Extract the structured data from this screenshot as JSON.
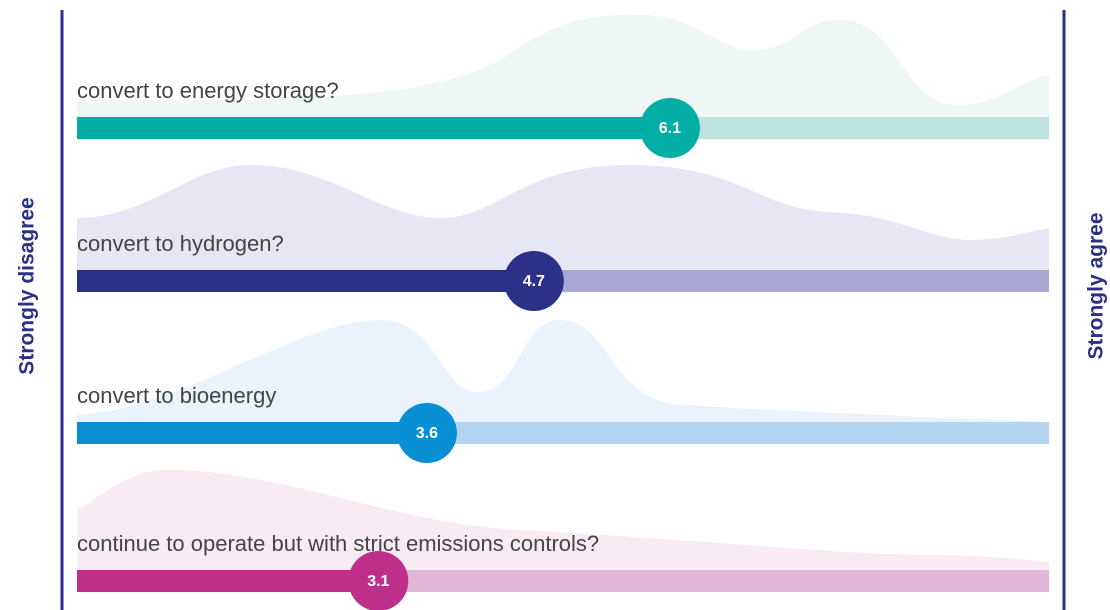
{
  "chart_data": {
    "type": "slider",
    "categories": [
      "convert to energy storage?",
      "convert to hydrogen?",
      "convert to bioenergy",
      "continue to operate but with strict emissions controls?"
    ],
    "values": [
      6.1,
      4.7,
      3.6,
      3.1
    ],
    "colors": [
      "#00aea6",
      "#2b3187",
      "#0a8fd4",
      "#be2f8b"
    ],
    "track_colors": [
      "#bfe3df",
      "#a9a7d6",
      "#b3d5f1",
      "#e2b6d6"
    ],
    "xlim": [
      0,
      10
    ],
    "left_label": "Strongly disagree",
    "right_label": "Strongly agree"
  }
}
